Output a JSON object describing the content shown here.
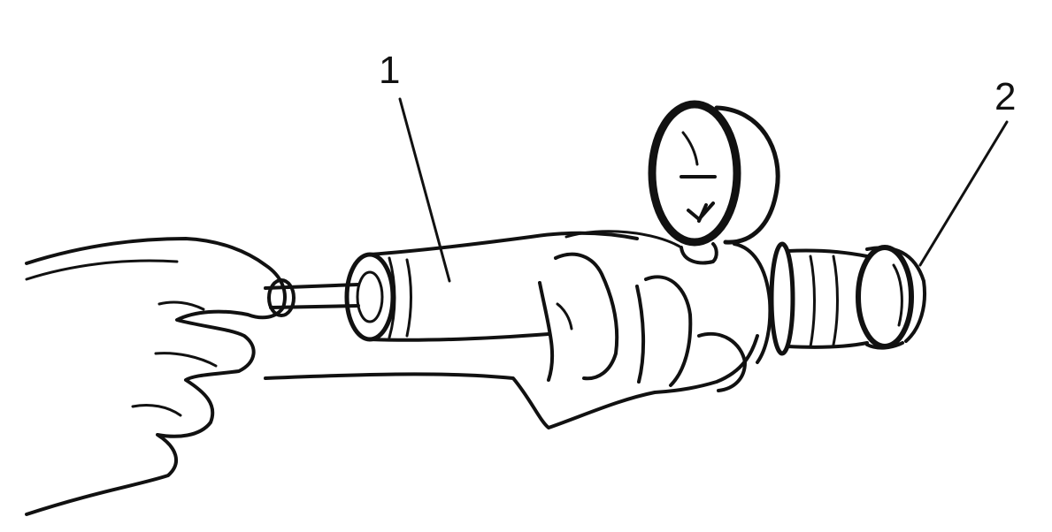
{
  "callouts": [
    {
      "label": "1"
    },
    {
      "label": "2"
    }
  ],
  "colors": {
    "ink": "#111111",
    "background": "#ffffff"
  }
}
